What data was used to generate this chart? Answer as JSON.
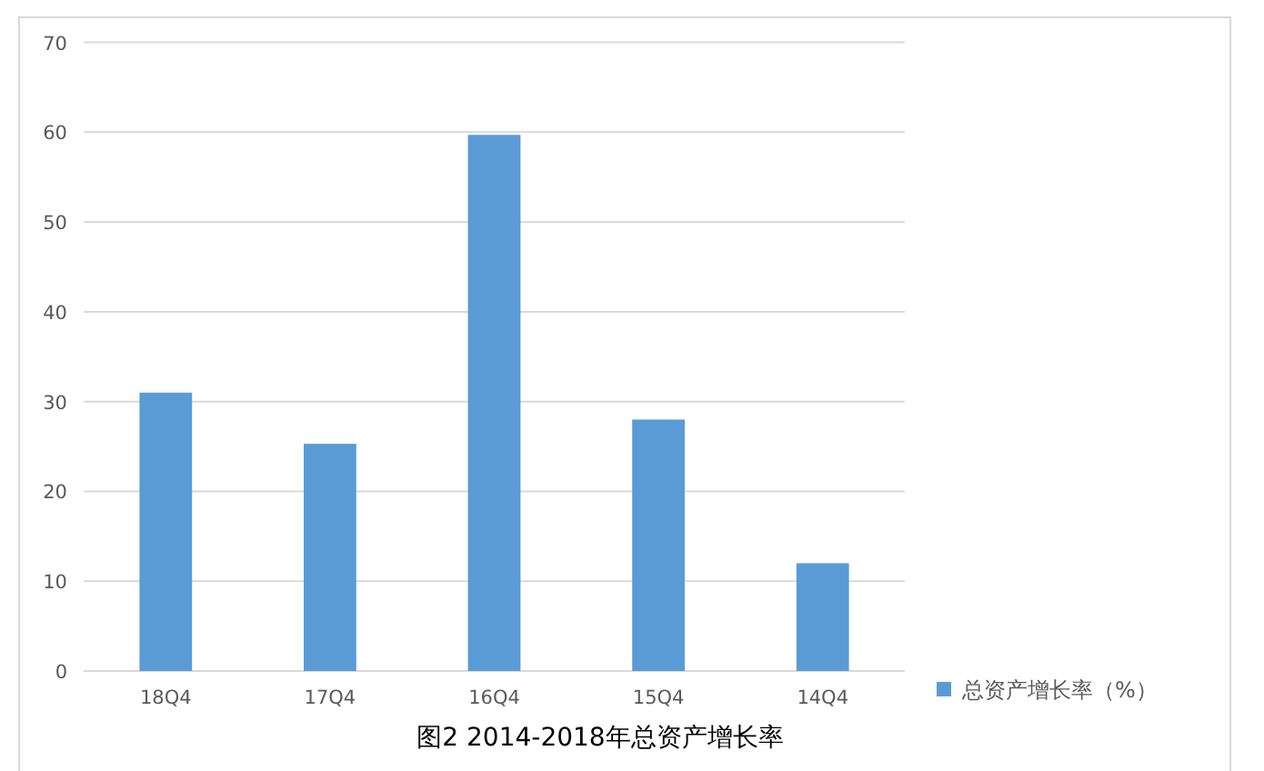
{
  "chart_data": {
    "type": "bar",
    "title": "图2 2014-2018年总资产增长率",
    "categories": [
      "18Q4",
      "17Q4",
      "16Q4",
      "15Q4",
      "14Q4"
    ],
    "series": [
      {
        "name": "总资产增长率（%）",
        "color": "#5b9bd5",
        "values": [
          31,
          25.3,
          59.7,
          28,
          12
        ]
      }
    ],
    "ylim": [
      0,
      70
    ],
    "yticks": [
      0,
      10,
      20,
      30,
      40,
      50,
      60,
      70
    ],
    "grid": "y",
    "legend": "right"
  }
}
